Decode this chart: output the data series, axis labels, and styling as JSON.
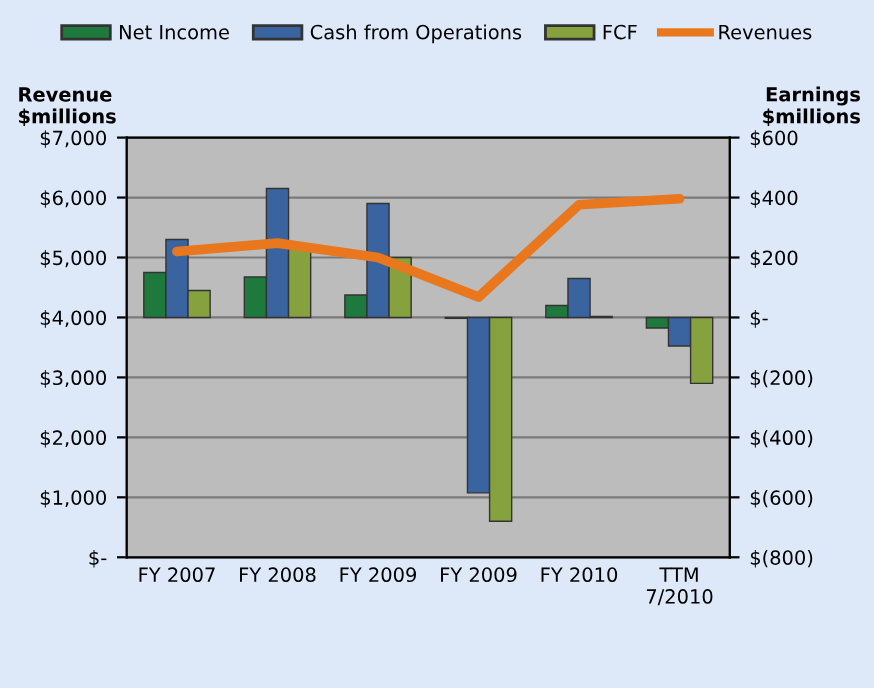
{
  "chart_data": {
    "type": "bar",
    "ylabel": "Revenue\n$millions",
    "y2label": "Earnings\n$millions",
    "categories": [
      "FY 2007",
      "FY 2008",
      "FY 2009",
      "FY 2009",
      "FY 2010",
      "TTM\n7/2010"
    ],
    "series": [
      {
        "name": "Net Income",
        "color": "#1e7a3c",
        "axis": "y2",
        "values": [
          150,
          135,
          75,
          -3,
          40,
          -35
        ]
      },
      {
        "name": "Cash from Operations",
        "color": "#3a64a0",
        "axis": "y2",
        "values": [
          260,
          430,
          380,
          -585,
          130,
          -95
        ]
      },
      {
        "name": "FCF",
        "color": "#86a23e",
        "axis": "y2",
        "values": [
          90,
          240,
          200,
          -680,
          3,
          -220
        ]
      },
      {
        "name": "Revenues",
        "color": "#e8771e",
        "axis": "y",
        "type": "line",
        "values": [
          5100,
          5240,
          5000,
          4340,
          5880,
          5980
        ]
      }
    ],
    "ylim": [
      0,
      7000
    ],
    "yticks": [
      {
        "value": 0,
        "label": "$-"
      },
      {
        "value": 1000,
        "label": "$1,000"
      },
      {
        "value": 2000,
        "label": "$2,000"
      },
      {
        "value": 3000,
        "label": "$3,000"
      },
      {
        "value": 4000,
        "label": "$4,000"
      },
      {
        "value": 5000,
        "label": "$5,000"
      },
      {
        "value": 6000,
        "label": "$6,000"
      },
      {
        "value": 7000,
        "label": "$7,000"
      }
    ],
    "y2lim": [
      -800,
      600
    ],
    "y2ticks": [
      {
        "value": -800,
        "label": "$(800)"
      },
      {
        "value": -600,
        "label": "$(600)"
      },
      {
        "value": -400,
        "label": "$(400)"
      },
      {
        "value": -200,
        "label": "$(200)"
      },
      {
        "value": 0,
        "label": "$-"
      },
      {
        "value": 200,
        "label": "$200"
      },
      {
        "value": 400,
        "label": "$400"
      },
      {
        "value": 600,
        "label": "$600"
      }
    ],
    "grid": "y",
    "legend": "top",
    "marker": "none",
    "line_style": "solid"
  }
}
